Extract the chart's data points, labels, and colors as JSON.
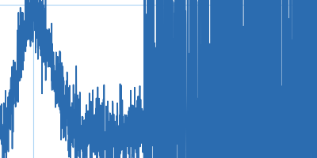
{
  "line_color": "#2b6cb0",
  "background_color": "#ffffff",
  "grid_color": "#aad4f5",
  "linewidth": 1.2,
  "figsize": [
    4.0,
    2.0
  ],
  "dpi": 100,
  "xlim": [
    0.0,
    1.0
  ],
  "ylim": [
    -0.18,
    1.12
  ]
}
